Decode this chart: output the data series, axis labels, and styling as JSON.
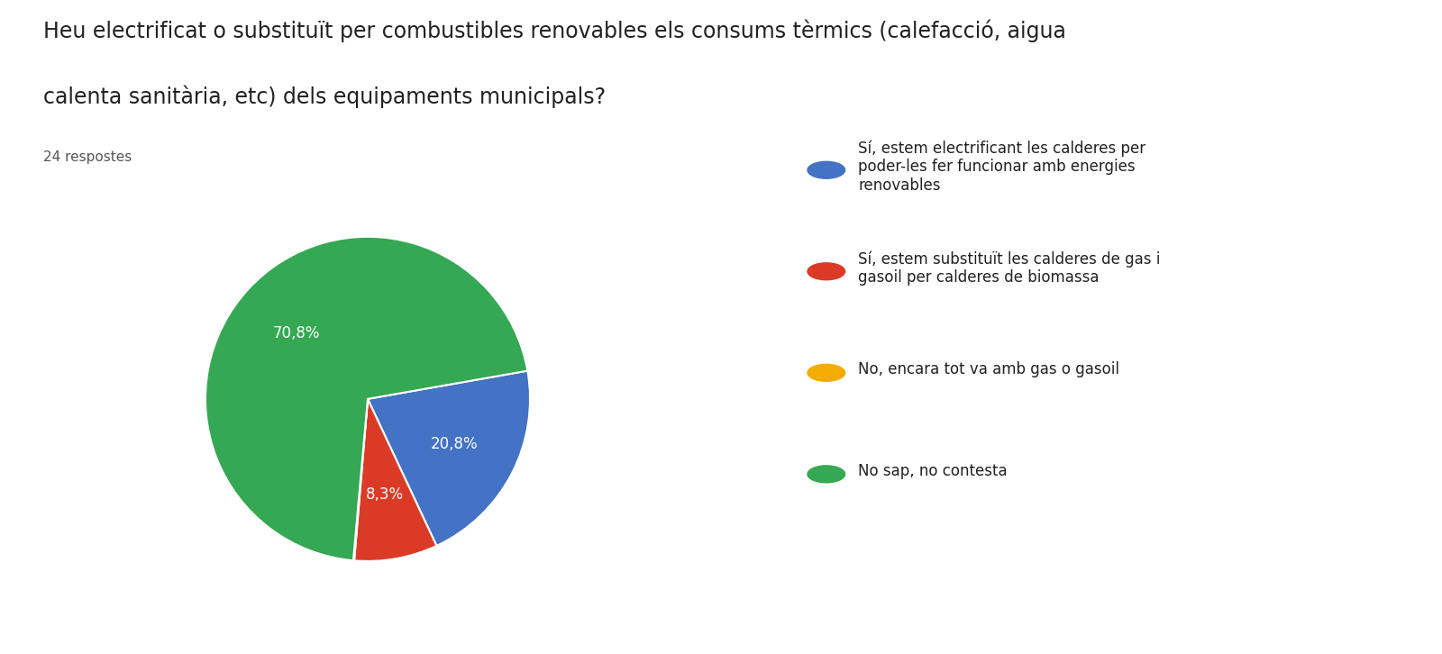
{
  "title_line1": "Heu electrificat o substituït per combustibles renovables els consums tèrmics (calefacció, aigua",
  "title_line2": "calenta sanitària, etc) dels equipaments municipals?",
  "subtitle": "24 respostes",
  "slices": [
    20.8,
    8.3,
    0.1,
    70.8
  ],
  "labels_pct": [
    "20,8%",
    "8,3%",
    "",
    "70,8%"
  ],
  "colors": [
    "#4472c4",
    "#db3b26",
    "#f4ac00",
    "#34a853"
  ],
  "legend_labels": [
    "Sí, estem electrificant les calderes per\npoder-les fer funcionar amb energies\nrenovables",
    "Sí, estem substituït les calderes de gas i\ngasoil per calderes de biomassa",
    "No, encara tot va amb gas o gasoil",
    "No sap, no contesta"
  ],
  "legend_colors": [
    "#4472c4",
    "#db3b26",
    "#f4ac00",
    "#34a853"
  ],
  "background_color": "#ffffff",
  "title_fontsize": 17,
  "subtitle_fontsize": 11,
  "legend_fontsize": 12,
  "pct_fontsize": 12
}
